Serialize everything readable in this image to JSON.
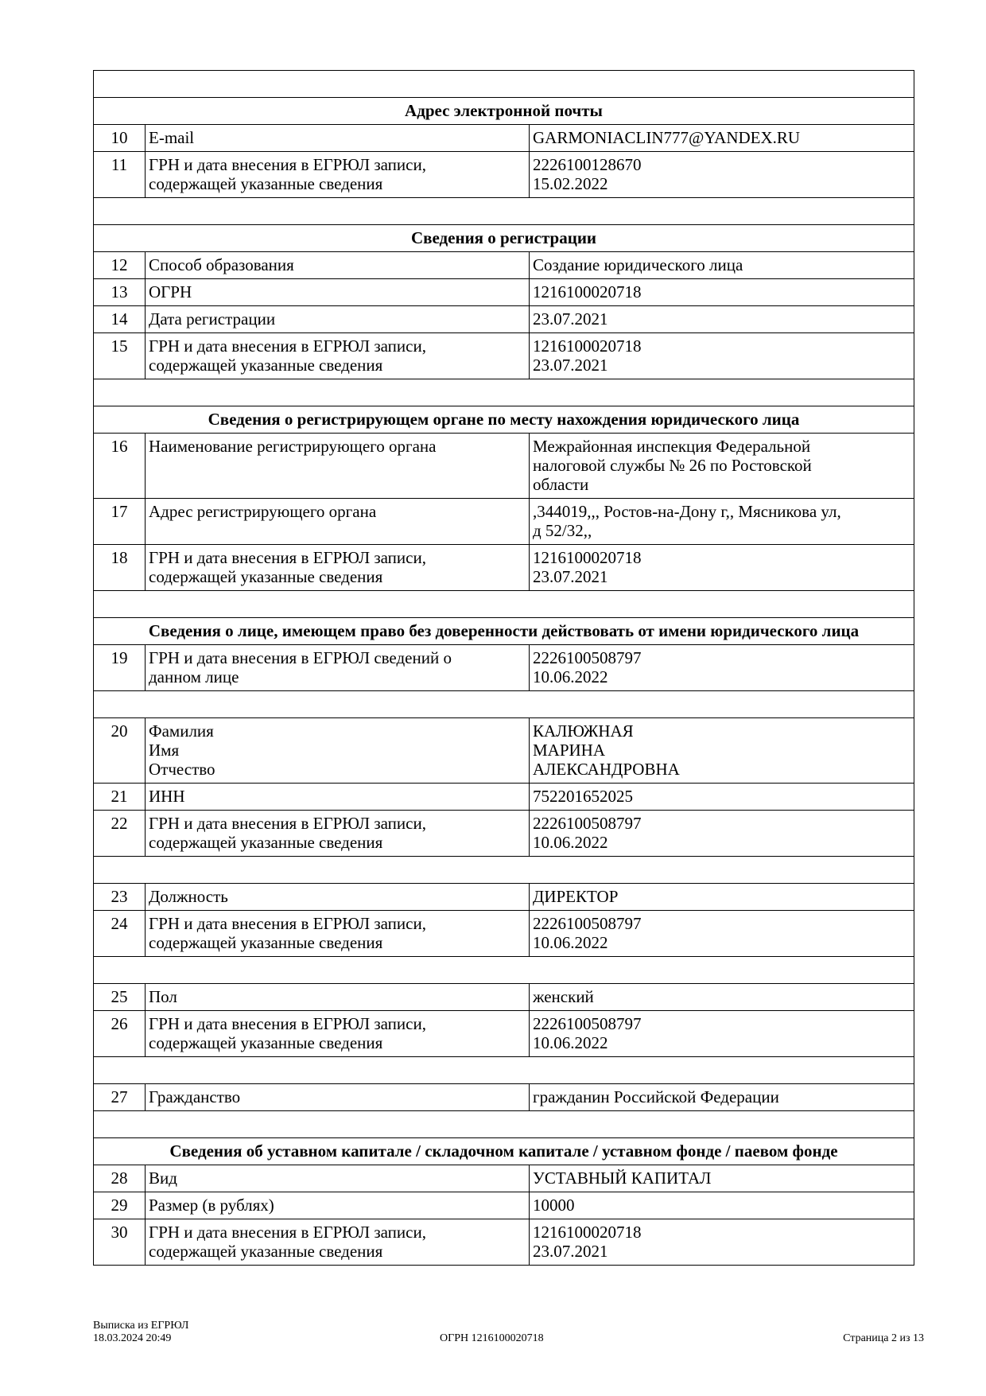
{
  "rows": [
    {
      "type": "blank"
    },
    {
      "type": "head",
      "text": "Адрес электронной почты"
    },
    {
      "type": "row",
      "num": "10",
      "label": "E-mail",
      "value": "GARMONIACLIN777@YANDEX.RU"
    },
    {
      "type": "row",
      "num": "11",
      "label": "ГРН и дата внесения в ЕГРЮЛ записи,\nсодержащей указанные сведения",
      "value": "2226100128670\n15.02.2022"
    },
    {
      "type": "blank"
    },
    {
      "type": "head",
      "text": "Сведения о регистрации"
    },
    {
      "type": "row",
      "num": "12",
      "label": "Способ образования",
      "value": "Создание юридического лица"
    },
    {
      "type": "row",
      "num": "13",
      "label": "ОГРН",
      "value": "1216100020718"
    },
    {
      "type": "row",
      "num": "14",
      "label": "Дата регистрации",
      "value": "23.07.2021"
    },
    {
      "type": "row",
      "num": "15",
      "label": "ГРН и дата внесения в ЕГРЮЛ записи,\nсодержащей указанные сведения",
      "value": "1216100020718\n23.07.2021"
    },
    {
      "type": "blank"
    },
    {
      "type": "head",
      "text": "Сведения о регистрирующем органе по месту нахождения юридического лица"
    },
    {
      "type": "row",
      "num": "16",
      "label": "Наименование регистрирующего органа",
      "value": "Межрайонная инспекция Федеральной\nналоговой службы № 26 по Ростовской\nобласти"
    },
    {
      "type": "row",
      "num": "17",
      "label": "Адрес регистрирующего органа",
      "value": ",344019,,, Ростов-на-Дону г,, Мясникова ул,\nд 52/32,,"
    },
    {
      "type": "row",
      "num": "18",
      "label": "ГРН и дата внесения в ЕГРЮЛ записи,\nсодержащей указанные сведения",
      "value": "1216100020718\n23.07.2021"
    },
    {
      "type": "blank"
    },
    {
      "type": "head",
      "text": "Сведения о лице, имеющем право без доверенности действовать от имени юридического лица"
    },
    {
      "type": "row",
      "num": "19",
      "label": "ГРН и дата внесения в ЕГРЮЛ сведений о\nданном лице",
      "value": "2226100508797\n10.06.2022"
    },
    {
      "type": "blank"
    },
    {
      "type": "row",
      "num": "20",
      "label": "Фамилия\nИмя\nОтчество",
      "value": "КАЛЮЖНАЯ\nМАРИНА\nАЛЕКСАНДРОВНА"
    },
    {
      "type": "row",
      "num": "21",
      "label": "ИНН",
      "value": "752201652025"
    },
    {
      "type": "row",
      "num": "22",
      "label": "ГРН и дата внесения в ЕГРЮЛ записи,\nсодержащей указанные сведения",
      "value": "2226100508797\n10.06.2022"
    },
    {
      "type": "blank"
    },
    {
      "type": "row",
      "num": "23",
      "label": "Должность",
      "value": "ДИРЕКТОР"
    },
    {
      "type": "row",
      "num": "24",
      "label": "ГРН и дата внесения в ЕГРЮЛ записи,\nсодержащей указанные сведения",
      "value": "2226100508797\n10.06.2022"
    },
    {
      "type": "blank"
    },
    {
      "type": "row",
      "num": "25",
      "label": "Пол",
      "value": "женский"
    },
    {
      "type": "row",
      "num": "26",
      "label": "ГРН и дата внесения в ЕГРЮЛ записи,\nсодержащей указанные сведения",
      "value": "2226100508797\n10.06.2022"
    },
    {
      "type": "blank"
    },
    {
      "type": "row",
      "num": "27",
      "label": "Гражданство",
      "value": "гражданин Российской Федерации"
    },
    {
      "type": "blank"
    },
    {
      "type": "head",
      "text": "Сведения об уставном капитале / складочном капитале / уставном фонде / паевом фонде"
    },
    {
      "type": "row",
      "num": "28",
      "label": "Вид",
      "value": "УСТАВНЫЙ КАПИТАЛ"
    },
    {
      "type": "row",
      "num": "29",
      "label": "Размер (в рублях)",
      "value": "10000"
    },
    {
      "type": "row",
      "num": "30",
      "label": "ГРН и дата внесения в ЕГРЮЛ записи,\nсодержащей указанные сведения",
      "value": "1216100020718\n23.07.2021"
    }
  ],
  "footer": {
    "doc_title": "Выписка из ЕГРЮЛ",
    "datetime": "18.03.2024 20:49",
    "ogrn": "ОГРН 1216100020718",
    "page": "Страница 2 из 13"
  }
}
